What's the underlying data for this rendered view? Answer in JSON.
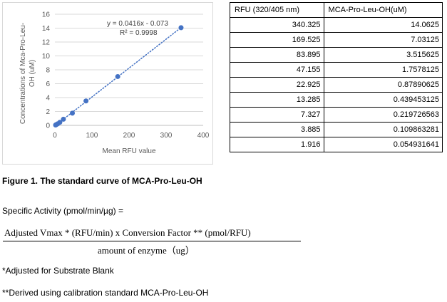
{
  "chart_data": {
    "type": "scatter",
    "xlabel": "Mean RFU value",
    "ylabel": "Concentrations of Mca-Pro-Leu-OH (uM)",
    "ylabel_lines": [
      "Concentrations of Mca-Pro-Leu-",
      "OH (uM)"
    ],
    "xlim": [
      0,
      400
    ],
    "ylim": [
      0,
      16
    ],
    "x_ticks": [
      0,
      100,
      200,
      300,
      400
    ],
    "y_ticks": [
      0,
      2,
      4,
      6,
      8,
      10,
      12,
      14,
      16
    ],
    "grid": "horizontal",
    "trendline": {
      "type": "linear",
      "slope": 0.0416,
      "intercept": -0.073,
      "style": "dotted"
    },
    "equation_label": "y = 0.0416x - 0.073",
    "r2_label": "R² = 0.9998",
    "marker_color": "#4472c4",
    "grid_color": "#d9d9d9",
    "points": [
      {
        "x": 340.325,
        "y": 14.0625
      },
      {
        "x": 169.525,
        "y": 7.03125
      },
      {
        "x": 83.895,
        "y": 3.515625
      },
      {
        "x": 47.155,
        "y": 1.7578125
      },
      {
        "x": 22.925,
        "y": 0.87890625
      },
      {
        "x": 13.285,
        "y": 0.439453125
      },
      {
        "x": 7.327,
        "y": 0.219726563
      },
      {
        "x": 3.885,
        "y": 0.109863281
      },
      {
        "x": 1.916,
        "y": 0.054931641
      }
    ]
  },
  "table": {
    "headers": [
      "RFU (320/405 nm)",
      "MCA-Pro-Leu-OH(uM)"
    ],
    "rows": [
      [
        "340.325",
        "14.0625"
      ],
      [
        "169.525",
        "7.03125"
      ],
      [
        "83.895",
        "3.515625"
      ],
      [
        "47.155",
        "1.7578125"
      ],
      [
        "22.925",
        "0.87890625"
      ],
      [
        "13.285",
        "0.439453125"
      ],
      [
        "7.327",
        "0.219726563"
      ],
      [
        "3.885",
        "0.109863281"
      ],
      [
        "1.916",
        "0.054931641"
      ]
    ]
  },
  "caption": "Figure 1. The standard curve of MCA-Pro-Leu-OH",
  "specific_activity": "Specific Activity (pmol/min/µg) =",
  "formula": {
    "numerator": "Adjusted Vmax * (RFU/min)  x Conversion  Factor ** (pmol/RFU)",
    "denominator": "amount  of  enzyme（ug）"
  },
  "notes": [
    "*Adjusted for Substrate Blank",
    "**Derived using calibration standard MCA-Pro-Leu-OH"
  ]
}
